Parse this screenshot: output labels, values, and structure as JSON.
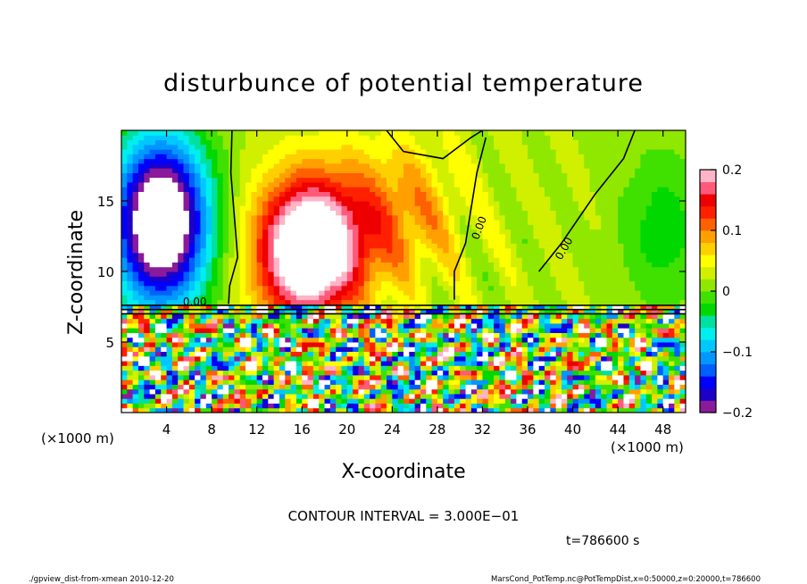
{
  "chart_data": {
    "type": "heatmap",
    "title": "disturbunce of potential temperature",
    "xlabel": "X-coordinate",
    "ylabel": "Z-coordinate",
    "x_unit": "(×1000 m)",
    "y_unit": "(×1000 m)",
    "xlim": [
      0,
      50
    ],
    "ylim": [
      0,
      20
    ],
    "x_ticks": [
      4,
      8,
      12,
      16,
      20,
      24,
      28,
      32,
      36,
      40,
      44,
      48
    ],
    "y_ticks": [
      5,
      10,
      15
    ],
    "colorbar": {
      "range": [
        -0.2,
        0.2
      ],
      "ticks": [
        0.2,
        0.1,
        0,
        -0.1,
        -0.2
      ],
      "tick_labels": [
        "0.2",
        "0.1",
        "0",
        "−0.1",
        "−0.2"
      ],
      "colors": [
        "#8b1a9b",
        "#1c00c8",
        "#0000ff",
        "#0060ff",
        "#0098ff",
        "#00c8ff",
        "#00eeee",
        "#00e0a0",
        "#00d800",
        "#40e000",
        "#90e800",
        "#d0f000",
        "#ffff00",
        "#ffd000",
        "#ffa000",
        "#ff6000",
        "#ff2000",
        "#ee0000",
        "#ff5a7a",
        "#ffb4c8"
      ]
    },
    "contour_labels": [
      "0.00",
      "0.00",
      "0.00"
    ],
    "contour_interval": "CONTOUR INTERVAL = 3.000E−01",
    "grid": false
  },
  "annotations": {
    "time": "t=786600 s",
    "footer_left": "./gpview_dist-from-xmean  2010-12-20",
    "footer_right": "MarsCond_PotTemp.nc@PotTempDist,x=0:50000,z=0:20000,t=786600"
  }
}
